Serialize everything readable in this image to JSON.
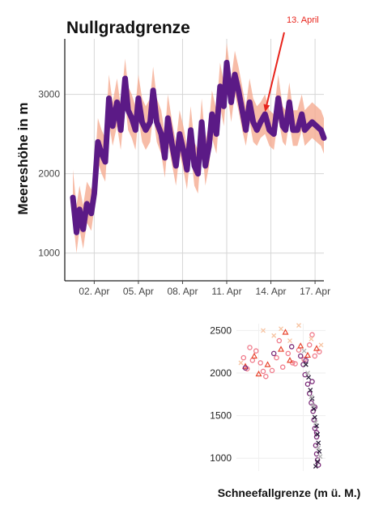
{
  "chart_data": [
    {
      "type": "line",
      "title": "Nullgradgrenze",
      "ylabel": "Meereshöhe in m",
      "xlabel": "",
      "ylim": [
        650,
        3700
      ],
      "xlim": [
        0,
        17.6
      ],
      "y_ticks": [
        1000,
        2000,
        3000
      ],
      "x_ticks": [
        {
          "x": 2,
          "label": "02. Apr"
        },
        {
          "x": 5,
          "label": "05. Apr"
        },
        {
          "x": 8,
          "label": "08. Apr"
        },
        {
          "x": 11,
          "label": "11. Apr"
        },
        {
          "x": 14,
          "label": "14. Apr"
        },
        {
          "x": 17,
          "label": "17. Apr"
        }
      ],
      "grid": true,
      "annotation": {
        "text": "13. April",
        "target_x": 13.6,
        "target_y": 2780,
        "color": "#e8241c"
      },
      "series": [
        {
          "color": "#5b1a86",
          "band_color": "#f4a58a",
          "x": [
            0.55,
            0.8,
            1.0,
            1.25,
            1.5,
            1.8,
            2.0,
            2.25,
            2.5,
            2.75,
            3.0,
            3.25,
            3.55,
            3.8,
            4.1,
            4.3,
            4.55,
            4.8,
            5.0,
            5.25,
            5.5,
            5.8,
            6.0,
            6.25,
            6.55,
            6.8,
            7.0,
            7.3,
            7.55,
            7.8,
            8.05,
            8.3,
            8.55,
            8.8,
            9.05,
            9.3,
            9.55,
            9.8,
            10.0,
            10.3,
            10.55,
            10.8,
            11.0,
            11.3,
            11.55,
            11.8,
            12.05,
            12.3,
            12.55,
            12.8,
            13.05,
            13.3,
            13.6,
            13.9,
            14.2,
            14.5,
            14.8,
            15.0,
            15.25,
            15.5,
            15.8,
            16.1,
            16.3,
            16.55,
            16.8,
            17.1,
            17.4,
            17.6
          ],
          "values": [
            1700,
            1260,
            1550,
            1300,
            1620,
            1500,
            1750,
            2400,
            2250,
            2150,
            2950,
            2600,
            2900,
            2550,
            3200,
            2800,
            2700,
            2550,
            2950,
            2650,
            2550,
            2650,
            3050,
            2650,
            2500,
            2200,
            2700,
            2350,
            2100,
            2500,
            2300,
            2050,
            2550,
            2100,
            2000,
            2650,
            2100,
            2350,
            2750,
            2500,
            3100,
            2850,
            3400,
            2900,
            3250,
            3050,
            2800,
            2550,
            2900,
            2650,
            2550,
            2650,
            2750,
            2550,
            2500,
            2950,
            2600,
            2550,
            2900,
            2550,
            2550,
            2750,
            2550,
            2600,
            2650,
            2600,
            2550,
            2450
          ],
          "lower": [
            1450,
            1000,
            1300,
            1050,
            1380,
            1280,
            1550,
            2150,
            2000,
            1900,
            2650,
            2350,
            2600,
            2300,
            2900,
            2550,
            2450,
            2300,
            2700,
            2400,
            2300,
            2400,
            2750,
            2400,
            2250,
            1950,
            2400,
            2100,
            1850,
            2250,
            2050,
            1800,
            2300,
            1850,
            1750,
            2400,
            1850,
            2100,
            2450,
            2250,
            2850,
            2600,
            3100,
            2650,
            3000,
            2800,
            2550,
            2350,
            2650,
            2400,
            2350,
            2450,
            2500,
            2350,
            2300,
            2700,
            2400,
            2350,
            2650,
            2350,
            2350,
            2550,
            2350,
            2400,
            2450,
            2400,
            2350,
            2250
          ],
          "upper": [
            2050,
            1600,
            1850,
            1600,
            1900,
            1800,
            2000,
            2700,
            2550,
            2450,
            3250,
            2900,
            3200,
            2850,
            3450,
            3100,
            3000,
            2850,
            3250,
            2950,
            2850,
            2950,
            3350,
            2950,
            2800,
            2500,
            3000,
            2650,
            2400,
            2800,
            2600,
            2350,
            2850,
            2400,
            2300,
            2950,
            2400,
            2650,
            3050,
            2800,
            3400,
            3150,
            3650,
            3200,
            3550,
            3350,
            3100,
            2850,
            3200,
            2950,
            2850,
            2900,
            3000,
            2800,
            2750,
            3250,
            2850,
            2800,
            3150,
            2800,
            2800,
            3000,
            2800,
            2850,
            2900,
            2850,
            2800,
            2700
          ]
        }
      ]
    },
    {
      "type": "scatter",
      "xlabel": "Schneefallgrenze (m ü. M.)",
      "ylim": [
        850,
        2580
      ],
      "xlim": [
        0,
        1
      ],
      "y_ticks": [
        1000,
        1500,
        2000,
        2500
      ],
      "grid": true,
      "series": [
        {
          "color": "#f07a8a",
          "marker": "circle",
          "x": [
            0.08,
            0.12,
            0.18,
            0.22,
            0.27,
            0.33,
            0.4,
            0.45,
            0.52,
            0.58,
            0.63,
            0.7,
            0.76,
            0.82,
            0.88,
            0.93,
            0.15,
            0.3,
            0.48,
            0.66,
            0.85
          ],
          "y": [
            2180,
            2050,
            2150,
            2260,
            2120,
            1960,
            2030,
            2180,
            2070,
            2230,
            2120,
            2270,
            2160,
            2330,
            2200,
            2250,
            2300,
            2020,
            2380,
            2110,
            2450
          ]
        },
        {
          "color": "#e8452e",
          "marker": "triangle",
          "x": [
            0.1,
            0.2,
            0.35,
            0.5,
            0.6,
            0.72,
            0.8,
            0.9,
            0.25,
            0.55
          ],
          "y": [
            2080,
            2200,
            2100,
            2280,
            2150,
            2320,
            2210,
            2290,
            1990,
            2480
          ]
        },
        {
          "color": "#f7c4a2",
          "marker": "cross",
          "x": [
            0.3,
            0.42,
            0.6,
            0.7,
            0.84,
            0.95,
            0.05,
            0.5
          ],
          "y": [
            2500,
            2440,
            2380,
            2560,
            2400,
            2330,
            2120,
            2520
          ]
        },
        {
          "color": "#7a2a78",
          "marker": "circle",
          "x": [
            0.72,
            0.75,
            0.77,
            0.8,
            0.82,
            0.84,
            0.86,
            0.87,
            0.88,
            0.9,
            0.89,
            0.9,
            0.91,
            0.92,
            0.9,
            0.88,
            0.78,
            0.85,
            0.1,
            0.42,
            0.62
          ],
          "y": [
            2200,
            2100,
            1980,
            1870,
            1760,
            1650,
            1550,
            1450,
            1350,
            1250,
            1150,
            1050,
            980,
            920,
            1300,
            1600,
            2150,
            1900,
            2060,
            2230,
            2310
          ]
        },
        {
          "color": "#2a1d3a",
          "marker": "cross",
          "x": [
            0.78,
            0.81,
            0.83,
            0.85,
            0.87,
            0.88,
            0.9,
            0.91,
            0.92,
            0.93,
            0.91,
            0.89
          ],
          "y": [
            2100,
            1950,
            1800,
            1700,
            1580,
            1480,
            1380,
            1280,
            1180,
            1080,
            960,
            905
          ]
        },
        {
          "color": "#b2b2b2",
          "marker": "cross",
          "x": [
            0.8,
            0.84,
            0.86,
            0.89,
            0.92,
            0.94,
            0.76
          ],
          "y": [
            2000,
            1720,
            1620,
            1420,
            1120,
            1020,
            2260
          ]
        }
      ]
    }
  ]
}
